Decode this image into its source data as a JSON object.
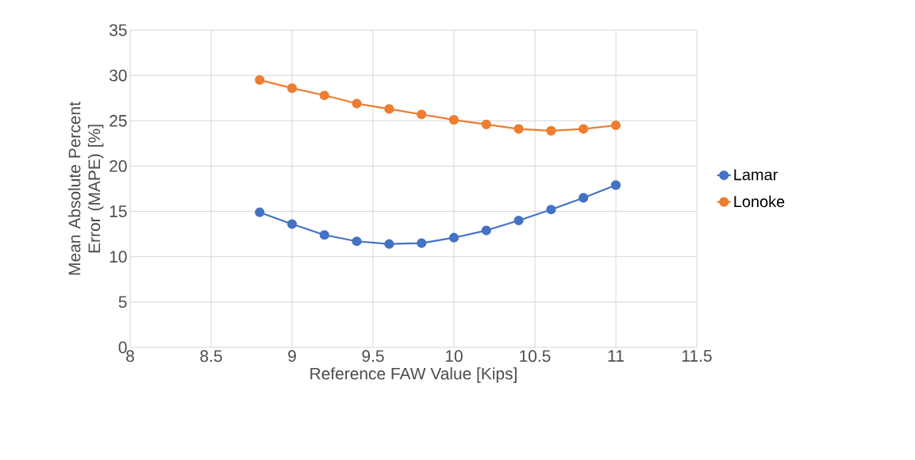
{
  "chart_data": {
    "type": "line",
    "xlabel": "Reference FAW Value [Kips]",
    "ylabel": "Mean Absolute Percent Error (MAPE) [%]",
    "x": [
      8.8,
      9.0,
      9.2,
      9.4,
      9.6,
      9.8,
      10.0,
      10.2,
      10.4,
      10.6,
      10.8,
      11.0
    ],
    "series": [
      {
        "name": "Lamar",
        "color": "#4472c4",
        "values": [
          14.9,
          13.6,
          12.4,
          11.7,
          11.4,
          11.5,
          12.1,
          12.9,
          14.0,
          15.2,
          16.5,
          17.9
        ]
      },
      {
        "name": "Lonoke",
        "color": "#ed7d31",
        "values": [
          29.5,
          28.6,
          27.8,
          26.9,
          26.3,
          25.7,
          25.1,
          24.6,
          24.1,
          23.9,
          24.1,
          24.5
        ]
      }
    ],
    "xlim": [
      8,
      11.5
    ],
    "xticks": [
      8,
      8.5,
      9,
      9.5,
      10,
      10.5,
      11,
      11.5
    ],
    "ylim": [
      0,
      35
    ],
    "yticks": [
      0,
      5,
      10,
      15,
      20,
      25,
      30,
      35
    ],
    "grid": true,
    "legend": "right",
    "marker": "circle",
    "line_style": "solid"
  }
}
